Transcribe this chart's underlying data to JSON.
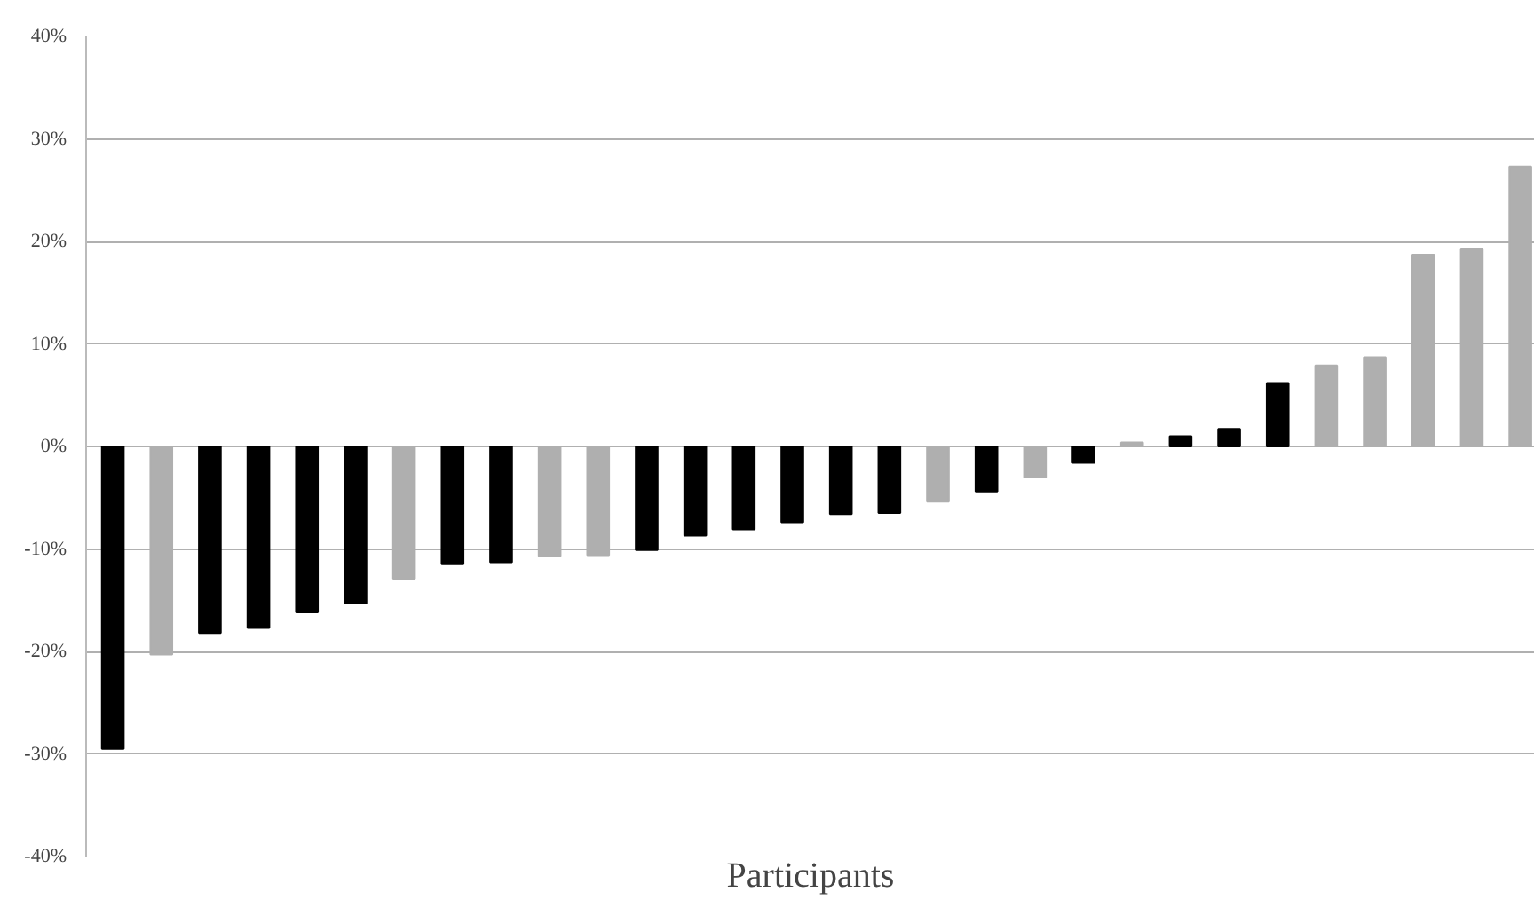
{
  "chart_data": {
    "type": "bar",
    "xlabel": "Participants",
    "categories": [
      null,
      null,
      null,
      null,
      null,
      null,
      null,
      null,
      null,
      null,
      null,
      null,
      null,
      null,
      null,
      null,
      null,
      null,
      null,
      null,
      null,
      null,
      null,
      null,
      null,
      null,
      null,
      null,
      null,
      null
    ],
    "values": [
      -29.5,
      -20.3,
      -18.2,
      -17.7,
      -16.2,
      -15.3,
      -12.9,
      -11.5,
      -11.3,
      -10.7,
      -10.6,
      -10.1,
      -8.7,
      -8.1,
      -7.4,
      -6.6,
      -6.5,
      -5.4,
      -4.4,
      -3.0,
      -1.6,
      0.4,
      1.0,
      1.7,
      6.2,
      7.9,
      8.7,
      18.7,
      19.3,
      27.3
    ],
    "colors": [
      "#000000",
      "#afafaf",
      "#000000",
      "#000000",
      "#000000",
      "#000000",
      "#afafaf",
      "#000000",
      "#000000",
      "#afafaf",
      "#afafaf",
      "#000000",
      "#000000",
      "#000000",
      "#000000",
      "#000000",
      "#000000",
      "#afafaf",
      "#000000",
      "#afafaf",
      "#000000",
      "#afafaf",
      "#000000",
      "#000000",
      "#000000",
      "#afafaf",
      "#afafaf",
      "#afafaf",
      "#afafaf",
      "#afafaf"
    ],
    "ylim": [
      -40,
      40
    ],
    "yticks": [
      {
        "value": -40,
        "label": "-40%"
      },
      {
        "value": -30,
        "label": "-30%"
      },
      {
        "value": -20,
        "label": "-20%"
      },
      {
        "value": -10,
        "label": "-10%"
      },
      {
        "value": 0,
        "label": "0%"
      },
      {
        "value": 10,
        "label": "10%"
      },
      {
        "value": 20,
        "label": "20%"
      },
      {
        "value": 30,
        "label": "30%"
      },
      {
        "value": 40,
        "label": "40%"
      }
    ],
    "grid": "y"
  }
}
